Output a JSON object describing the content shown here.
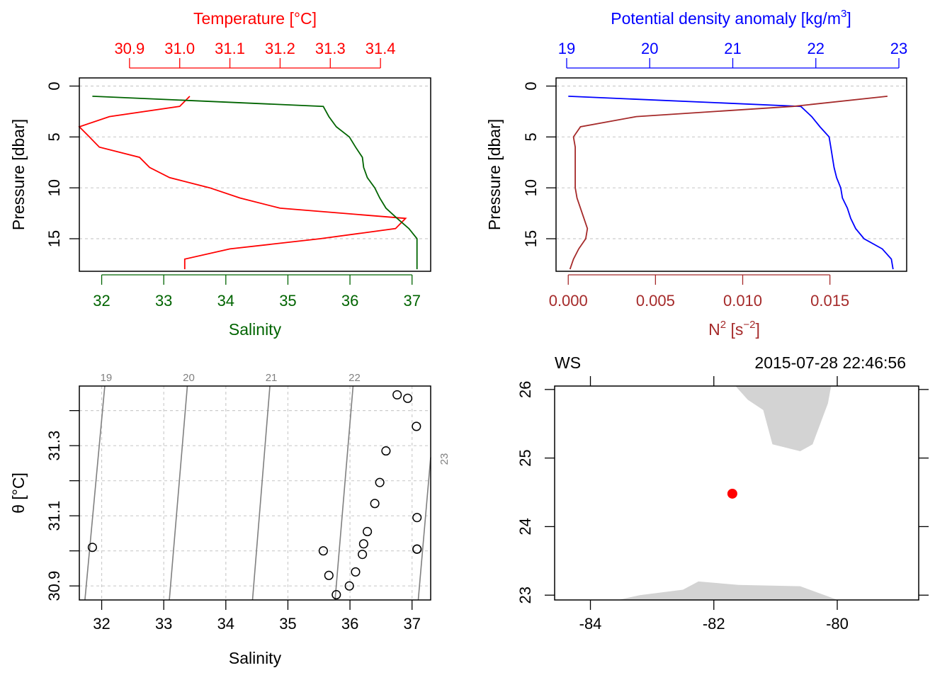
{
  "chart_data": [
    {
      "type": "line",
      "panel": "temperature-salinity-profile",
      "colors": {
        "temperature": "#ff0000",
        "salinity": "#006400"
      },
      "top_axis": {
        "label": "Temperature [°C]",
        "ticks": [
          30.9,
          31.0,
          31.1,
          31.2,
          31.3,
          31.4
        ],
        "tick_labels": [
          "30.9",
          "31.0",
          "31.1",
          "31.2",
          "31.3",
          "31.4"
        ],
        "range": [
          30.8,
          31.5
        ]
      },
      "bottom_axis": {
        "label": "Salinity",
        "ticks": [
          32,
          33,
          34,
          35,
          36,
          37
        ],
        "tick_labels": [
          "32",
          "33",
          "34",
          "35",
          "36",
          "37"
        ],
        "range": [
          31.64,
          37.3
        ]
      },
      "y_axis": {
        "label": "Pressure [dbar]",
        "ticks": [
          0,
          5,
          10,
          15
        ],
        "tick_labels": [
          "0",
          "5",
          "10",
          "15"
        ],
        "range": [
          18.2,
          -0.8
        ],
        "reversed": true,
        "grid": true
      },
      "series": [
        {
          "name": "Temperature",
          "axis": "top",
          "points": [
            [
              31.02,
              1
            ],
            [
              31.0,
              2
            ],
            [
              30.86,
              3
            ],
            [
              30.8,
              4
            ],
            [
              30.82,
              5
            ],
            [
              30.84,
              6
            ],
            [
              30.92,
              7
            ],
            [
              30.94,
              8
            ],
            [
              30.98,
              9
            ],
            [
              31.06,
              10
            ],
            [
              31.12,
              11
            ],
            [
              31.2,
              12
            ],
            [
              31.45,
              13
            ],
            [
              31.43,
              14
            ],
            [
              31.28,
              15
            ],
            [
              31.1,
              16
            ],
            [
              31.01,
              17
            ],
            [
              31.01,
              18
            ]
          ]
        },
        {
          "name": "Salinity",
          "axis": "bottom",
          "points": [
            [
              31.85,
              1
            ],
            [
              35.57,
              2
            ],
            [
              35.66,
              3
            ],
            [
              35.78,
              4
            ],
            [
              35.99,
              5
            ],
            [
              36.09,
              6
            ],
            [
              36.2,
              7
            ],
            [
              36.22,
              8
            ],
            [
              36.28,
              9
            ],
            [
              36.4,
              10
            ],
            [
              36.48,
              11
            ],
            [
              36.58,
              12
            ],
            [
              36.76,
              13
            ],
            [
              36.95,
              14
            ],
            [
              37.08,
              15
            ],
            [
              37.08,
              16
            ],
            [
              37.08,
              17
            ],
            [
              37.08,
              18
            ]
          ]
        }
      ]
    },
    {
      "type": "line",
      "panel": "density-n2-profile",
      "colors": {
        "density": "#0000ff",
        "n2": "#a52a2a"
      },
      "top_axis": {
        "label": "Potential density anomaly [kg/m",
        "label_sup": "3",
        "label_end": "]",
        "ticks": [
          19,
          20,
          21,
          22,
          23
        ],
        "tick_labels": [
          "19",
          "20",
          "21",
          "22",
          "23"
        ],
        "range": [
          19,
          23
        ]
      },
      "bottom_axis": {
        "label": "N",
        "label_sup": "2",
        "label_mid": " [s",
        "label_sup2": "−2",
        "label_end": "]",
        "ticks": [
          0.0,
          0.005,
          0.01,
          0.015
        ],
        "tick_labels": [
          "0.000",
          "0.005",
          "0.010",
          "0.015"
        ],
        "range": [
          -0.0007,
          0.0194
        ]
      },
      "y_axis": {
        "label": "Pressure [dbar]",
        "ticks": [
          0,
          5,
          10,
          15
        ],
        "tick_labels": [
          "0",
          "5",
          "10",
          "15"
        ],
        "range": [
          18.2,
          -0.8
        ],
        "reversed": true,
        "grid": true
      },
      "series": [
        {
          "name": "Potential density anomaly",
          "axis": "top",
          "points": [
            [
              19.02,
              1
            ],
            [
              21.82,
              2
            ],
            [
              21.95,
              3
            ],
            [
              22.05,
              4
            ],
            [
              22.16,
              5
            ],
            [
              22.18,
              6
            ],
            [
              22.2,
              7
            ],
            [
              22.22,
              8
            ],
            [
              22.25,
              9
            ],
            [
              22.3,
              10
            ],
            [
              22.32,
              11
            ],
            [
              22.38,
              12
            ],
            [
              22.42,
              13
            ],
            [
              22.48,
              14
            ],
            [
              22.58,
              15
            ],
            [
              22.8,
              16
            ],
            [
              22.91,
              17
            ],
            [
              22.93,
              18
            ]
          ]
        },
        {
          "name": "N2",
          "axis": "bottom",
          "points": [
            [
              0.0183,
              1
            ],
            [
              0.0129,
              2
            ],
            [
              0.0039,
              3
            ],
            [
              0.0007,
              4
            ],
            [
              0.0003,
              5
            ],
            [
              0.0004,
              6
            ],
            [
              0.0004,
              7
            ],
            [
              0.0004,
              8
            ],
            [
              0.0004,
              9
            ],
            [
              0.0004,
              10
            ],
            [
              0.0005,
              11
            ],
            [
              0.0007,
              12
            ],
            [
              0.0009,
              13
            ],
            [
              0.0011,
              14
            ],
            [
              0.001,
              15
            ],
            [
              0.0006,
              16
            ],
            [
              0.0003,
              17
            ],
            [
              0.0001,
              18
            ]
          ]
        }
      ]
    },
    {
      "type": "scatter",
      "panel": "ts-diagram",
      "x_axis": {
        "label": "Salinity",
        "ticks": [
          32,
          33,
          34,
          35,
          36,
          37
        ],
        "tick_labels": [
          "32",
          "33",
          "34",
          "35",
          "36",
          "37"
        ],
        "range": [
          31.64,
          37.3
        ],
        "grid": true
      },
      "y_axis": {
        "label": "θ [°C]",
        "ticks": [
          30.9,
          31.0,
          31.1,
          31.2,
          31.3,
          31.4
        ],
        "tick_labels": [
          "30.9",
          "",
          "31.1",
          "",
          "31.3",
          ""
        ],
        "range": [
          30.86,
          31.47
        ],
        "grid": true
      },
      "isopycnals": [
        {
          "label": "19",
          "s_bottom": 31.73,
          "s_top": 32.05
        },
        {
          "label": "20",
          "s_bottom": 33.09,
          "s_top": 33.38
        },
        {
          "label": "21",
          "s_bottom": 34.43,
          "s_top": 34.71
        },
        {
          "label": "22",
          "s_bottom": 35.76,
          "s_top": 36.05
        },
        {
          "label": "23",
          "s_bottom": 37.1,
          "s_top": 37.4,
          "label_side": "right"
        }
      ],
      "points": [
        [
          31.85,
          31.01
        ],
        [
          35.57,
          31.0
        ],
        [
          35.66,
          30.93
        ],
        [
          35.78,
          30.875
        ],
        [
          35.99,
          30.9
        ],
        [
          36.09,
          30.94
        ],
        [
          36.2,
          30.99
        ],
        [
          36.22,
          31.02
        ],
        [
          36.28,
          31.055
        ],
        [
          36.4,
          31.135
        ],
        [
          36.48,
          31.195
        ],
        [
          36.58,
          31.285
        ],
        [
          36.76,
          31.445
        ],
        [
          36.93,
          31.435
        ],
        [
          37.07,
          31.355
        ],
        [
          37.08,
          31.095
        ],
        [
          37.08,
          31.005
        ],
        [
          37.08,
          31.005
        ]
      ]
    },
    {
      "type": "map",
      "panel": "station-map",
      "station_name": "WS",
      "datetime": "2015-07-28 22:46:56",
      "x_axis": {
        "ticks": [
          -84,
          -82,
          -80
        ],
        "tick_labels": [
          "-84",
          "-82",
          "-80"
        ],
        "range": [
          -84.58,
          -78.68
        ]
      },
      "y_axis": {
        "ticks": [
          23,
          24,
          25,
          26
        ],
        "tick_labels": [
          "23",
          "24",
          "25",
          "26"
        ],
        "range": [
          22.93,
          26.05
        ]
      },
      "station": {
        "lon": -81.7,
        "lat": 24.48,
        "color": "#ff0000"
      },
      "land_color": "#d3d3d3",
      "land": [
        [
          [
            -81.65,
            26.05
          ],
          [
            -81.45,
            25.85
          ],
          [
            -81.2,
            25.7
          ],
          [
            -81.05,
            25.2
          ],
          [
            -80.6,
            25.1
          ],
          [
            -80.4,
            25.2
          ],
          [
            -80.15,
            25.8
          ],
          [
            -80.1,
            26.05
          ]
        ],
        [
          [
            -83.55,
            22.93
          ],
          [
            -83.2,
            23.0
          ],
          [
            -82.5,
            23.08
          ],
          [
            -82.25,
            23.2
          ],
          [
            -81.6,
            23.15
          ],
          [
            -80.6,
            23.13
          ],
          [
            -80.05,
            22.95
          ],
          [
            -80.0,
            22.93
          ]
        ]
      ]
    }
  ]
}
